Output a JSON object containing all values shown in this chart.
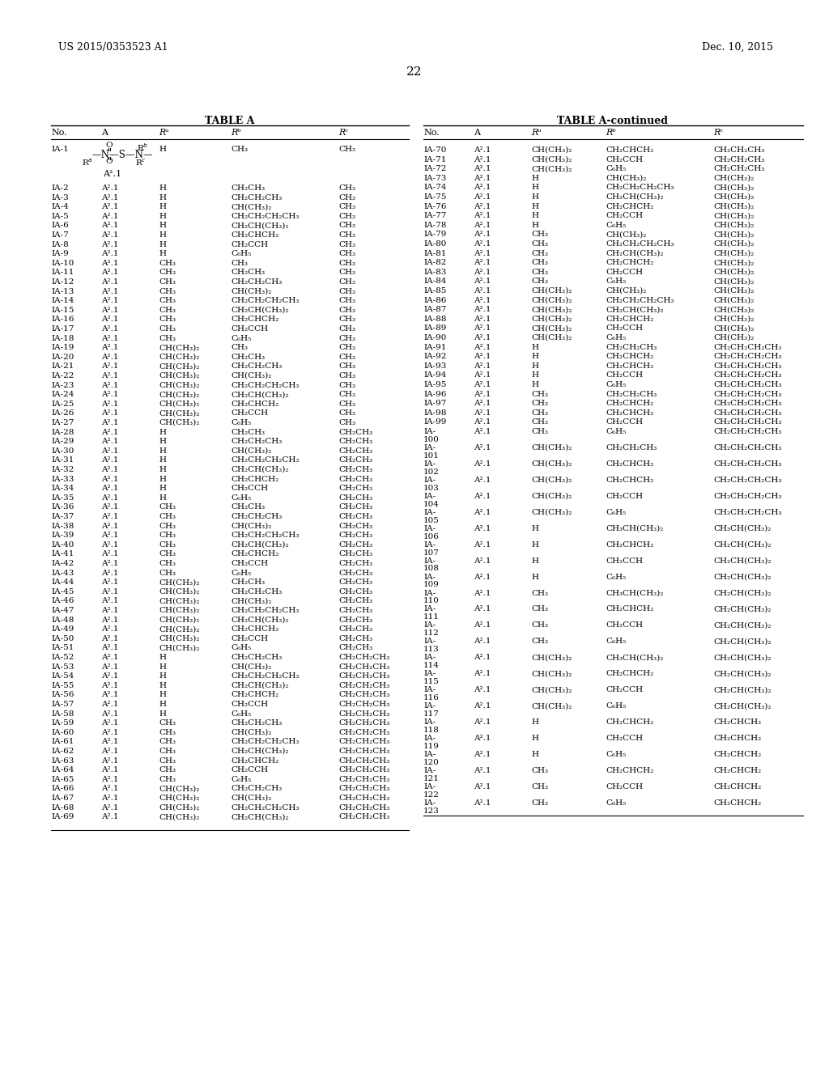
{
  "header_left": "US 2015/0353523 A1",
  "header_right": "Dec. 10, 2015",
  "page_number": "22",
  "table_left_title": "TABLE A",
  "table_right_title": "TABLE A-continued",
  "left_rows": [
    [
      "IA-1",
      "STRUCT",
      "H",
      "CH₃",
      "CH₃"
    ],
    [
      "IA-2",
      "A².1",
      "H",
      "CH₂CH₃",
      "CH₃"
    ],
    [
      "IA-3",
      "A².1",
      "H",
      "CH₂CH₂CH₃",
      "CH₃"
    ],
    [
      "IA-4",
      "A².1",
      "H",
      "CH(CH₃)₂",
      "CH₃"
    ],
    [
      "IA-5",
      "A².1",
      "H",
      "CH₂CH₂CH₂CH₃",
      "CH₃"
    ],
    [
      "IA-6",
      "A².1",
      "H",
      "CH₂CH(CH₃)₂",
      "CH₃"
    ],
    [
      "IA-7",
      "A².1",
      "H",
      "CH₂CHCH₂",
      "CH₃"
    ],
    [
      "IA-8",
      "A².1",
      "H",
      "CH₂CCH",
      "CH₃"
    ],
    [
      "IA-9",
      "A².1",
      "H",
      "C₆H₅",
      "CH₃"
    ],
    [
      "IA-10",
      "A².1",
      "CH₃",
      "CH₃",
      "CH₃"
    ],
    [
      "IA-11",
      "A².1",
      "CH₃",
      "CH₂CH₃",
      "CH₃"
    ],
    [
      "IA-12",
      "A².1",
      "CH₃",
      "CH₂CH₂CH₃",
      "CH₃"
    ],
    [
      "IA-13",
      "A².1",
      "CH₃",
      "CH(CH₃)₂",
      "CH₃"
    ],
    [
      "IA-14",
      "A².1",
      "CH₃",
      "CH₂CH₂CH₂CH₃",
      "CH₃"
    ],
    [
      "IA-15",
      "A².1",
      "CH₃",
      "CH₂CH(CH₃)₂",
      "CH₃"
    ],
    [
      "IA-16",
      "A².1",
      "CH₃",
      "CH₂CHCH₂",
      "CH₃"
    ],
    [
      "IA-17",
      "A².1",
      "CH₃",
      "CH₂CCH",
      "CH₃"
    ],
    [
      "IA-18",
      "A².1",
      "CH₃",
      "C₆H₅",
      "CH₃"
    ],
    [
      "IA-19",
      "A².1",
      "CH(CH₃)₂",
      "CH₃",
      "CH₃"
    ],
    [
      "IA-20",
      "A².1",
      "CH(CH₃)₂",
      "CH₂CH₃",
      "CH₃"
    ],
    [
      "IA-21",
      "A².1",
      "CH(CH₃)₂",
      "CH₂CH₂CH₃",
      "CH₃"
    ],
    [
      "IA-22",
      "A².1",
      "CH(CH₃)₂",
      "CH(CH₃)₂",
      "CH₃"
    ],
    [
      "IA-23",
      "A².1",
      "CH(CH₃)₂",
      "CH₂CH₂CH₂CH₃",
      "CH₃"
    ],
    [
      "IA-24",
      "A².1",
      "CH(CH₃)₂",
      "CH₂CH(CH₃)₂",
      "CH₃"
    ],
    [
      "IA-25",
      "A².1",
      "CH(CH₃)₂",
      "CH₂CHCH₂",
      "CH₃"
    ],
    [
      "IA-26",
      "A².1",
      "CH(CH₃)₂",
      "CH₂CCH",
      "CH₃"
    ],
    [
      "IA-27",
      "A².1",
      "CH(CH₃)₂",
      "C₆H₅",
      "CH₃"
    ],
    [
      "IA-28",
      "A².1",
      "H",
      "CH₂CH₃",
      "CH₂CH₃"
    ],
    [
      "IA-29",
      "A².1",
      "H",
      "CH₂CH₂CH₃",
      "CH₂CH₃"
    ],
    [
      "IA-30",
      "A².1",
      "H",
      "CH(CH₃)₂",
      "CH₂CH₃"
    ],
    [
      "IA-31",
      "A².1",
      "H",
      "CH₂CH₂CH₂CH₃",
      "CH₂CH₃"
    ],
    [
      "IA-32",
      "A².1",
      "H",
      "CH₂CH(CH₃)₂",
      "CH₂CH₃"
    ],
    [
      "IA-33",
      "A².1",
      "H",
      "CH₂CHCH₂",
      "CH₂CH₃"
    ],
    [
      "IA-34",
      "A².1",
      "H",
      "CH₂CCH",
      "CH₂CH₃"
    ],
    [
      "IA-35",
      "A².1",
      "H",
      "C₆H₅",
      "CH₂CH₃"
    ],
    [
      "IA-36",
      "A².1",
      "CH₃",
      "CH₂CH₃",
      "CH₂CH₃"
    ],
    [
      "IA-37",
      "A².1",
      "CH₃",
      "CH₂CH₂CH₃",
      "CH₂CH₃"
    ],
    [
      "IA-38",
      "A².1",
      "CH₃",
      "CH(CH₃)₂",
      "CH₂CH₃"
    ],
    [
      "IA-39",
      "A².1",
      "CH₃",
      "CH₂CH₂CH₂CH₃",
      "CH₂CH₃"
    ],
    [
      "IA-40",
      "A².1",
      "CH₃",
      "CH₂CH(CH₃)₂",
      "CH₂CH₃"
    ],
    [
      "IA-41",
      "A².1",
      "CH₃",
      "CH₂CHCH₂",
      "CH₂CH₃"
    ],
    [
      "IA-42",
      "A².1",
      "CH₃",
      "CH₂CCH",
      "CH₂CH₃"
    ],
    [
      "IA-43",
      "A².1",
      "CH₃",
      "C₆H₅",
      "CH₂CH₃"
    ],
    [
      "IA-44",
      "A².1",
      "CH(CH₃)₂",
      "CH₂CH₃",
      "CH₂CH₃"
    ],
    [
      "IA-45",
      "A².1",
      "CH(CH₃)₂",
      "CH₂CH₂CH₃",
      "CH₂CH₃"
    ],
    [
      "IA-46",
      "A².1",
      "CH(CH₃)₂",
      "CH(CH₃)₂",
      "CH₂CH₃"
    ],
    [
      "IA-47",
      "A².1",
      "CH(CH₃)₂",
      "CH₂CH₂CH₂CH₃",
      "CH₂CH₃"
    ],
    [
      "IA-48",
      "A².1",
      "CH(CH₃)₂",
      "CH₂CH(CH₃)₂",
      "CH₂CH₃"
    ],
    [
      "IA-49",
      "A².1",
      "CH(CH₃)₂",
      "CH₂CHCH₂",
      "CH₂CH₃"
    ],
    [
      "IA-50",
      "A².1",
      "CH(CH₃)₂",
      "CH₂CCH",
      "CH₂CH₃"
    ],
    [
      "IA-51",
      "A².1",
      "CH(CH₃)₂",
      "C₆H₅",
      "CH₂CH₃"
    ],
    [
      "IA-52",
      "A².1",
      "H",
      "CH₂CH₂CH₃",
      "CH₂CH₂CH₃"
    ],
    [
      "IA-53",
      "A².1",
      "H",
      "CH(CH₃)₂",
      "CH₂CH₂CH₃"
    ],
    [
      "IA-54",
      "A².1",
      "H",
      "CH₂CH₂CH₂CH₃",
      "CH₂CH₂CH₃"
    ],
    [
      "IA-55",
      "A².1",
      "H",
      "CH₂CH(CH₃)₂",
      "CH₂CH₂CH₃"
    ],
    [
      "IA-56",
      "A².1",
      "H",
      "CH₂CHCH₂",
      "CH₂CH₂CH₃"
    ],
    [
      "IA-57",
      "A².1",
      "H",
      "CH₂CCH",
      "CH₂CH₂CH₃"
    ],
    [
      "IA-58",
      "A².1",
      "H",
      "C₆H₅",
      "CH₂CH₂CH₃"
    ],
    [
      "IA-59",
      "A².1",
      "CH₃",
      "CH₂CH₂CH₃",
      "CH₂CH₂CH₃"
    ],
    [
      "IA-60",
      "A².1",
      "CH₃",
      "CH(CH₃)₂",
      "CH₂CH₂CH₃"
    ],
    [
      "IA-61",
      "A².1",
      "CH₃",
      "CH₂CH₂CH₂CH₃",
      "CH₂CH₂CH₃"
    ],
    [
      "IA-62",
      "A².1",
      "CH₃",
      "CH₂CH(CH₃)₂",
      "CH₂CH₂CH₃"
    ],
    [
      "IA-63",
      "A².1",
      "CH₃",
      "CH₂CHCH₂",
      "CH₂CH₂CH₃"
    ],
    [
      "IA-64",
      "A².1",
      "CH₃",
      "CH₂CCH",
      "CH₂CH₂CH₃"
    ],
    [
      "IA-65",
      "A².1",
      "CH₃",
      "C₆H₅",
      "CH₂CH₂CH₃"
    ],
    [
      "IA-66",
      "A².1",
      "CH(CH₃)₂",
      "CH₂CH₂CH₃",
      "CH₂CH₂CH₃"
    ],
    [
      "IA-67",
      "A².1",
      "CH(CH₃)₂",
      "CH(CH₃)₂",
      "CH₂CH₂CH₃"
    ],
    [
      "IA-68",
      "A².1",
      "CH(CH₃)₂",
      "CH₂CH₂CH₂CH₃",
      "CH₂CH₂CH₃"
    ],
    [
      "IA-69",
      "A².1",
      "CH(CH₃)₂",
      "CH₂CH(CH₃)₂",
      "CH₂CH₂CH₃"
    ]
  ],
  "right_rows": [
    [
      "IA-70",
      "A².1",
      "CH(CH₃)₂",
      "CH₂CHCH₂",
      "CH₂CH₂CH₃"
    ],
    [
      "IA-71",
      "A².1",
      "CH(CH₃)₂",
      "CH₂CCH",
      "CH₂CH₂CH₃"
    ],
    [
      "IA-72",
      "A².1",
      "CH(CH₃)₂",
      "C₆H₅",
      "CH₂CH₂CH₃"
    ],
    [
      "IA-73",
      "A².1",
      "H",
      "CH(CH₃)₂",
      "CH(CH₃)₂"
    ],
    [
      "IA-74",
      "A².1",
      "H",
      "CH₂CH₂CH₂CH₃",
      "CH(CH₃)₂"
    ],
    [
      "IA-75",
      "A².1",
      "H",
      "CH₂CH(CH₃)₂",
      "CH(CH₃)₂"
    ],
    [
      "IA-76",
      "A².1",
      "H",
      "CH₂CHCH₂",
      "CH(CH₃)₂"
    ],
    [
      "IA-77",
      "A².1",
      "H",
      "CH₂CCH",
      "CH(CH₃)₂"
    ],
    [
      "IA-78",
      "A².1",
      "H",
      "C₆H₅",
      "CH(CH₃)₂"
    ],
    [
      "IA-79",
      "A².1",
      "CH₃",
      "CH(CH₃)₂",
      "CH(CH₃)₂"
    ],
    [
      "IA-80",
      "A².1",
      "CH₃",
      "CH₂CH₂CH₂CH₃",
      "CH(CH₃)₂"
    ],
    [
      "IA-81",
      "A².1",
      "CH₃",
      "CH₂CH(CH₃)₂",
      "CH(CH₃)₂"
    ],
    [
      "IA-82",
      "A².1",
      "CH₃",
      "CH₂CHCH₂",
      "CH(CH₃)₂"
    ],
    [
      "IA-83",
      "A².1",
      "CH₃",
      "CH₂CCH",
      "CH(CH₃)₂"
    ],
    [
      "IA-84",
      "A².1",
      "CH₃",
      "C₆H₅",
      "CH(CH₃)₂"
    ],
    [
      "IA-85",
      "A².1",
      "CH(CH₃)₂",
      "CH(CH₃)₂",
      "CH(CH₃)₂"
    ],
    [
      "IA-86",
      "A².1",
      "CH(CH₃)₂",
      "CH₂CH₂CH₂CH₃",
      "CH(CH₃)₂"
    ],
    [
      "IA-87",
      "A².1",
      "CH(CH₃)₂",
      "CH₂CH(CH₃)₂",
      "CH(CH₃)₂"
    ],
    [
      "IA-88",
      "A².1",
      "CH(CH₃)₂",
      "CH₂CHCH₂",
      "CH(CH₃)₂"
    ],
    [
      "IA-89",
      "A².1",
      "CH(CH₃)₂",
      "CH₂CCH",
      "CH(CH₃)₂"
    ],
    [
      "IA-90",
      "A².1",
      "CH(CH₃)₂",
      "C₆H₅",
      "CH(CH₃)₂"
    ],
    [
      "IA-91",
      "A².1",
      "H",
      "CH₂CH₂CH₃",
      "CH₂CH₂CH₂CH₃"
    ],
    [
      "IA-92",
      "A².1",
      "H",
      "CH₂CHCH₂",
      "CH₂CH₂CH₂CH₃"
    ],
    [
      "IA-93",
      "A².1",
      "H",
      "CH₂CHCH₂",
      "CH₂CH₂CH₂CH₃"
    ],
    [
      "IA-94",
      "A².1",
      "H",
      "CH₂CCH",
      "CH₂CH₂CH₂CH₃"
    ],
    [
      "IA-95",
      "A².1",
      "H",
      "C₆H₅",
      "CH₂CH₂CH₂CH₃"
    ],
    [
      "IA-96",
      "A².1",
      "CH₃",
      "CH₂CH₂CH₃",
      "CH₂CH₂CH₂CH₃"
    ],
    [
      "IA-97",
      "A².1",
      "CH₃",
      "CH₂CHCH₂",
      "CH₂CH₂CH₂CH₃"
    ],
    [
      "IA-98",
      "A².1",
      "CH₃",
      "CH₂CHCH₂",
      "CH₂CH₂CH₂CH₃"
    ],
    [
      "IA-99",
      "A².1",
      "CH₃",
      "CH₂CCH",
      "CH₂CH₂CH₂CH₃"
    ],
    [
      "IA-\n100",
      "A².1",
      "CH₃",
      "C₆H₅",
      "CH₂CH₂CH₂CH₃"
    ],
    [
      "IA-\n101",
      "A².1",
      "CH(CH₃)₂",
      "CH₂CH₂CH₃",
      "CH₂CH₂CH₂CH₃"
    ],
    [
      "IA-\n102",
      "A².1",
      "CH(CH₃)₂",
      "CH₂CHCH₂",
      "CH₂CH₂CH₂CH₃"
    ],
    [
      "IA-\n103",
      "A².1",
      "CH(CH₃)₂",
      "CH₂CHCH₂",
      "CH₂CH₂CH₂CH₃"
    ],
    [
      "IA-\n104",
      "A².1",
      "CH(CH₃)₂",
      "CH₂CCH",
      "CH₂CH₂CH₂CH₃"
    ],
    [
      "IA-\n105",
      "A².1",
      "CH(CH₃)₂",
      "C₆H₅",
      "CH₂CH₂CH₂CH₃"
    ],
    [
      "IA-\n106",
      "A².1",
      "H",
      "CH₃CH(CH₃)₂",
      "CH₃CH(CH₃)₂"
    ],
    [
      "IA-\n107",
      "A².1",
      "H",
      "CH₂CHCH₂",
      "CH₂CH(CH₃)₂"
    ],
    [
      "IA-\n108",
      "A².1",
      "H",
      "CH₂CCH",
      "CH₂CH(CH₃)₂"
    ],
    [
      "IA-\n109",
      "A².1",
      "H",
      "C₆H₅",
      "CH₂CH(CH₃)₂"
    ],
    [
      "IA-\n110",
      "A².1",
      "CH₃",
      "CH₃CH(CH₃)₂",
      "CH₂CH(CH₃)₂"
    ],
    [
      "IA-\n111",
      "A².1",
      "CH₃",
      "CH₂CHCH₂",
      "CH₂CH(CH₃)₂"
    ],
    [
      "IA-\n112",
      "A².1",
      "CH₃",
      "CH₂CCH",
      "CH₂CH(CH₃)₂"
    ],
    [
      "IA-\n113",
      "A².1",
      "CH₃",
      "C₆H₅",
      "CH₂CH(CH₃)₂"
    ],
    [
      "IA-\n114",
      "A².1",
      "CH(CH₃)₂",
      "CH₃CH(CH₃)₂",
      "CH₂CH(CH₃)₂"
    ],
    [
      "IA-\n115",
      "A².1",
      "CH(CH₃)₂",
      "CH₂CHCH₂",
      "CH₂CH(CH₃)₂"
    ],
    [
      "IA-\n116",
      "A².1",
      "CH(CH₃)₂",
      "CH₂CCH",
      "CH₂CH(CH₃)₂"
    ],
    [
      "IA-\n117",
      "A².1",
      "CH(CH₃)₂",
      "C₆H₅",
      "CH₂CH(CH₃)₂"
    ],
    [
      "IA-\n118",
      "A².1",
      "H",
      "CH₂CHCH₂",
      "CH₂CHCH₂"
    ],
    [
      "IA-\n119",
      "A².1",
      "H",
      "CH₂CCH",
      "CH₂CHCH₂"
    ],
    [
      "IA-\n120",
      "A².1",
      "H",
      "C₆H₅",
      "CH₂CHCH₂"
    ],
    [
      "IA-\n121",
      "A².1",
      "CH₃",
      "CH₂CHCH₂",
      "CH₂CHCH₂"
    ],
    [
      "IA-\n122",
      "A².1",
      "CH₃",
      "CH₂CCH",
      "CH₂CHCH₂"
    ],
    [
      "IA-\n123",
      "A².1",
      "CH₃",
      "C₆H₅",
      "CH₂CHCH₂"
    ]
  ],
  "bg_color": "#ffffff"
}
